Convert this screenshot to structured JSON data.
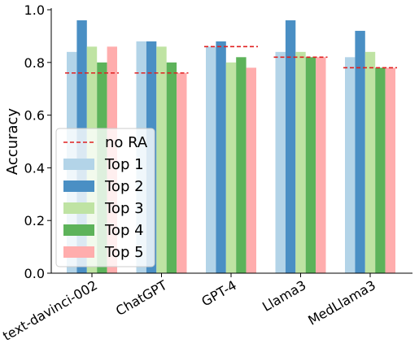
{
  "chart_data": {
    "type": "bar",
    "title": "",
    "xlabel": "",
    "ylabel": "Accuracy",
    "ylim": [
      0,
      1.0
    ],
    "yticks": [
      0.0,
      0.2,
      0.4,
      0.6,
      0.8,
      1.0
    ],
    "ytick_labels": [
      "0.0",
      "0.2",
      "0.4",
      "0.6",
      "0.8",
      "1.0"
    ],
    "categories": [
      "text-davinci-002",
      "ChatGPT",
      "GPT-4",
      "Llama3",
      "MedLlama3"
    ],
    "series": [
      {
        "name": "Top 1",
        "color": "#b3d4e8",
        "values": [
          0.84,
          0.88,
          0.86,
          0.84,
          0.82
        ]
      },
      {
        "name": "Top 2",
        "color": "#4a8fc4",
        "values": [
          0.96,
          0.88,
          0.88,
          0.96,
          0.92
        ]
      },
      {
        "name": "Top 3",
        "color": "#bfe3a3",
        "values": [
          0.86,
          0.86,
          0.8,
          0.84,
          0.84
        ]
      },
      {
        "name": "Top 4",
        "color": "#5db35a",
        "values": [
          0.8,
          0.8,
          0.82,
          0.82,
          0.78
        ]
      },
      {
        "name": "Top 5",
        "color": "#ffadad",
        "values": [
          0.86,
          0.76,
          0.78,
          0.82,
          0.78
        ]
      }
    ],
    "baseline": {
      "name": "no RA",
      "color": "#e02020",
      "values": [
        0.76,
        0.76,
        0.86,
        0.82,
        0.78
      ]
    },
    "legend_position": "lower-left",
    "grid": false
  }
}
